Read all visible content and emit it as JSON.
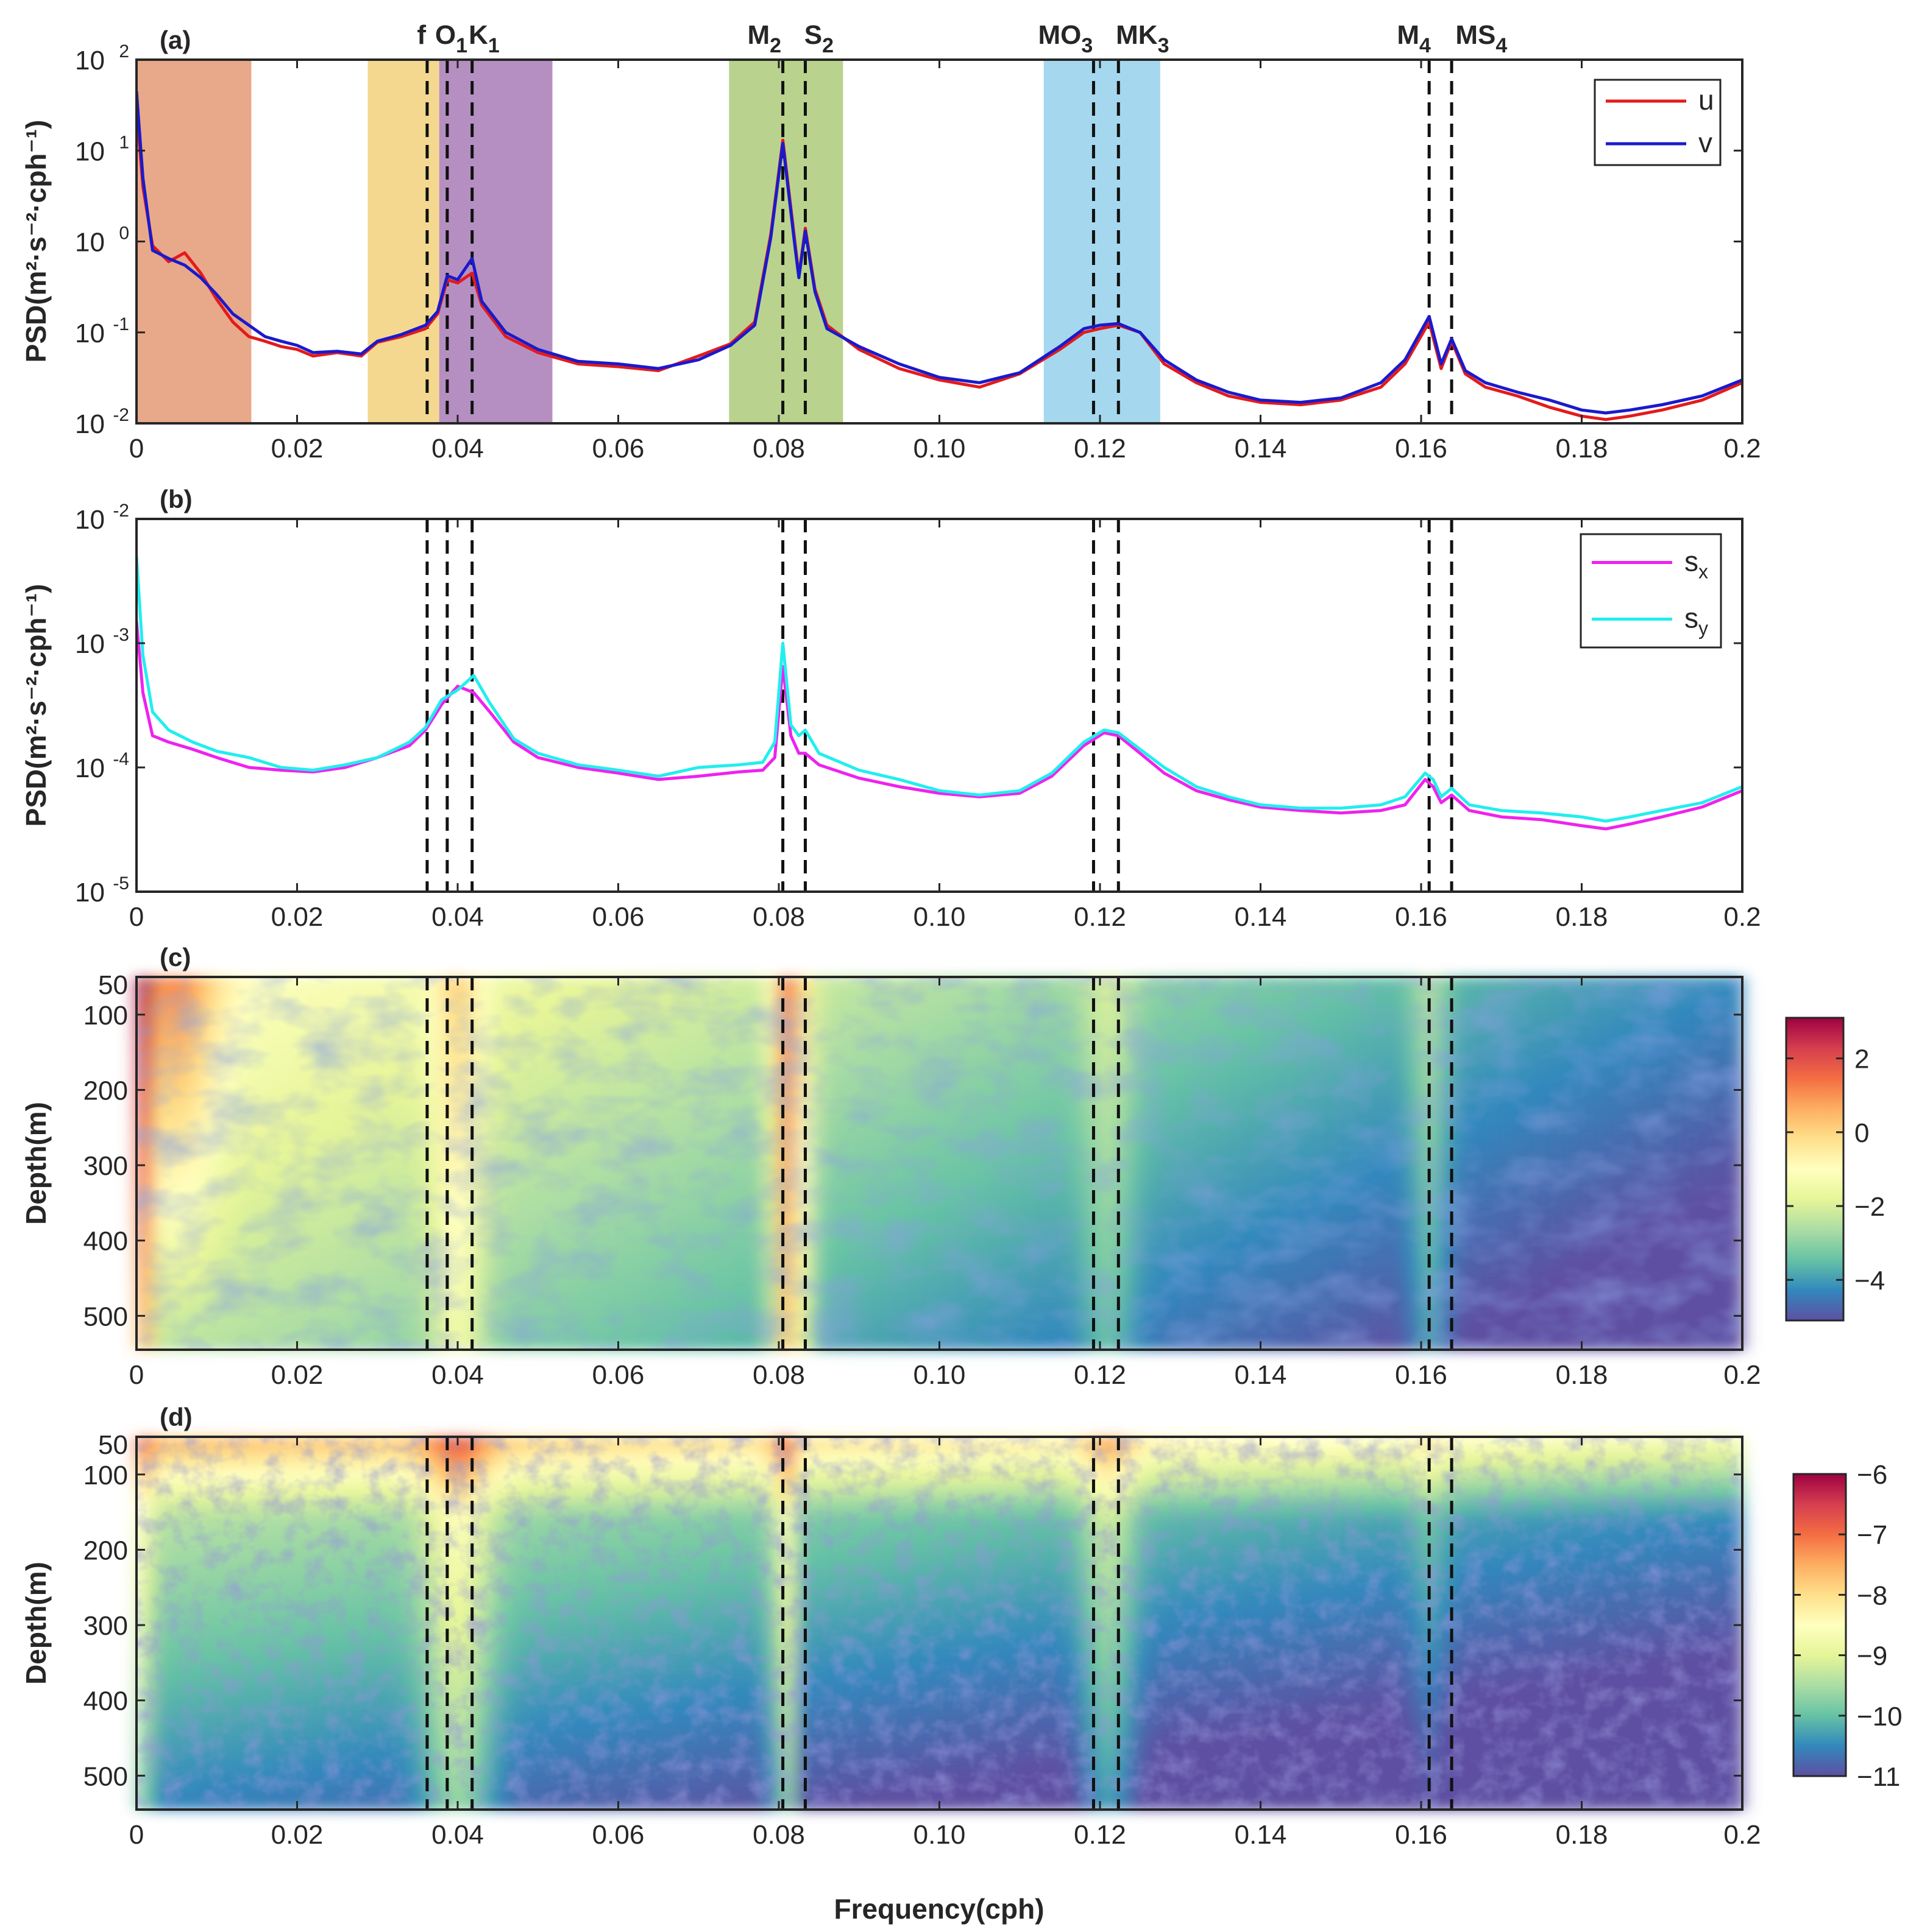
{
  "figure": {
    "xlabel": "Frequency(cph)",
    "xlim": [
      0,
      0.2
    ],
    "x_ticks": [
      0,
      0.02,
      0.04,
      0.06,
      0.08,
      0.1,
      0.12,
      0.14,
      0.16,
      0.18,
      0.2
    ],
    "x_tick_labels": [
      "0",
      "0.02",
      "0.04",
      "0.06",
      "0.08",
      "0.10",
      "0.12",
      "0.14",
      "0.16",
      "0.18",
      "0.2"
    ],
    "constituent_freqs": [
      0.0362,
      0.0387,
      0.0418,
      0.0805,
      0.0833,
      0.1192,
      0.1223,
      0.161,
      0.1638
    ]
  },
  "chart_data": [
    {
      "panel": "(a)",
      "type": "line",
      "yscale": "log",
      "ylabel": "PSD(m²·s⁻²·cph⁻¹)",
      "ylim": [
        0.01,
        100
      ],
      "y_ticks": [
        {
          "base": "10",
          "exp": "2",
          "value": 100
        },
        {
          "base": "10",
          "exp": "1",
          "value": 10
        },
        {
          "base": "10",
          "exp": "0",
          "value": 1
        },
        {
          "base": "10",
          "exp": "-1",
          "value": 0.1
        },
        {
          "base": "10",
          "exp": "-2",
          "value": 0.01
        }
      ],
      "constituent_labels": [
        {
          "text": "f",
          "sub": "",
          "x": 0.0355
        },
        {
          "text": "O",
          "sub": "1",
          "x": 0.0392
        },
        {
          "text": "K",
          "sub": "1",
          "x": 0.0433
        },
        {
          "text": "M",
          "sub": "2",
          "x": 0.0782
        },
        {
          "text": "S",
          "sub": "2",
          "x": 0.085
        },
        {
          "text": "MO",
          "sub": "3",
          "x": 0.1157
        },
        {
          "text": "MK",
          "sub": "3",
          "x": 0.1253
        },
        {
          "text": "M",
          "sub": "4",
          "x": 0.1591
        },
        {
          "text": "MS",
          "sub": "4",
          "x": 0.1675
        }
      ],
      "bands": [
        {
          "x0": 0.0,
          "x1": 0.0143,
          "color": "#e8a98a"
        },
        {
          "x0": 0.0288,
          "x1": 0.0377,
          "color": "#f5d890"
        },
        {
          "x0": 0.0377,
          "x1": 0.0518,
          "color": "#b68fc2"
        },
        {
          "x0": 0.0738,
          "x1": 0.088,
          "color": "#b9d38e"
        },
        {
          "x0": 0.113,
          "x1": 0.1275,
          "color": "#a5d8ee"
        }
      ],
      "series": [
        {
          "name": "u",
          "color": "#e41a1c",
          "x": [
            0,
            0.0008,
            0.002,
            0.004,
            0.006,
            0.008,
            0.01,
            0.012,
            0.014,
            0.016,
            0.018,
            0.02,
            0.022,
            0.025,
            0.028,
            0.03,
            0.033,
            0.036,
            0.0375,
            0.0387,
            0.04,
            0.0418,
            0.043,
            0.046,
            0.05,
            0.055,
            0.06,
            0.065,
            0.07,
            0.074,
            0.077,
            0.079,
            0.0805,
            0.082,
            0.0825,
            0.0833,
            0.0845,
            0.086,
            0.09,
            0.095,
            0.1,
            0.105,
            0.11,
            0.115,
            0.118,
            0.12,
            0.1223,
            0.125,
            0.128,
            0.132,
            0.136,
            0.14,
            0.145,
            0.15,
            0.155,
            0.158,
            0.161,
            0.1625,
            0.1638,
            0.1655,
            0.168,
            0.172,
            0.176,
            0.18,
            0.183,
            0.186,
            0.19,
            0.195,
            0.2
          ],
          "values": [
            30,
            4,
            0.9,
            0.6,
            0.75,
            0.45,
            0.23,
            0.13,
            0.09,
            0.08,
            0.07,
            0.065,
            0.055,
            0.06,
            0.055,
            0.078,
            0.09,
            0.11,
            0.16,
            0.38,
            0.35,
            0.45,
            0.2,
            0.09,
            0.06,
            0.045,
            0.042,
            0.038,
            0.055,
            0.075,
            0.13,
            1.2,
            13,
            1.0,
            0.42,
            1.4,
            0.3,
            0.12,
            0.065,
            0.04,
            0.03,
            0.025,
            0.035,
            0.065,
            0.1,
            0.11,
            0.12,
            0.1,
            0.045,
            0.028,
            0.02,
            0.017,
            0.016,
            0.018,
            0.025,
            0.045,
            0.13,
            0.04,
            0.08,
            0.035,
            0.025,
            0.02,
            0.015,
            0.012,
            0.011,
            0.012,
            0.014,
            0.018,
            0.028
          ]
        },
        {
          "name": "v",
          "color": "#1a1acc",
          "x": [
            0,
            0.0008,
            0.002,
            0.004,
            0.006,
            0.008,
            0.01,
            0.012,
            0.014,
            0.016,
            0.018,
            0.02,
            0.022,
            0.025,
            0.028,
            0.03,
            0.033,
            0.036,
            0.0375,
            0.0387,
            0.04,
            0.0418,
            0.043,
            0.046,
            0.05,
            0.055,
            0.06,
            0.065,
            0.07,
            0.074,
            0.077,
            0.079,
            0.0805,
            0.082,
            0.0825,
            0.0833,
            0.0845,
            0.086,
            0.09,
            0.095,
            0.1,
            0.105,
            0.11,
            0.115,
            0.118,
            0.12,
            0.1223,
            0.125,
            0.128,
            0.132,
            0.136,
            0.14,
            0.145,
            0.15,
            0.155,
            0.158,
            0.161,
            0.1625,
            0.1638,
            0.1655,
            0.168,
            0.172,
            0.176,
            0.18,
            0.183,
            0.186,
            0.19,
            0.195,
            0.2
          ],
          "values": [
            45,
            5,
            0.8,
            0.65,
            0.55,
            0.4,
            0.26,
            0.16,
            0.12,
            0.09,
            0.08,
            0.072,
            0.06,
            0.062,
            0.058,
            0.08,
            0.095,
            0.12,
            0.17,
            0.42,
            0.38,
            0.65,
            0.22,
            0.1,
            0.065,
            0.048,
            0.045,
            0.04,
            0.05,
            0.072,
            0.12,
            1.1,
            12,
            0.9,
            0.4,
            1.3,
            0.28,
            0.11,
            0.07,
            0.045,
            0.032,
            0.028,
            0.036,
            0.07,
            0.11,
            0.12,
            0.125,
            0.1,
            0.05,
            0.03,
            0.022,
            0.018,
            0.017,
            0.019,
            0.028,
            0.05,
            0.15,
            0.045,
            0.085,
            0.038,
            0.028,
            0.022,
            0.018,
            0.014,
            0.013,
            0.014,
            0.016,
            0.02,
            0.03
          ]
        }
      ],
      "legend": {
        "position": "top-right"
      }
    },
    {
      "panel": "(b)",
      "type": "line",
      "yscale": "log",
      "ylabel": "PSD(m²·s⁻²·cph⁻¹)",
      "ylim": [
        1e-05,
        0.01
      ],
      "y_ticks": [
        {
          "base": "10",
          "exp": "-2",
          "value": 0.01
        },
        {
          "base": "10",
          "exp": "-3",
          "value": 0.001
        },
        {
          "base": "10",
          "exp": "-4",
          "value": 0.0001
        },
        {
          "base": "10",
          "exp": "-5",
          "value": 1e-05
        }
      ],
      "series": [
        {
          "name": "s_x",
          "label": "s",
          "sub": "x",
          "color": "#ee22ee",
          "x": [
            0,
            0.0008,
            0.002,
            0.004,
            0.007,
            0.01,
            0.014,
            0.018,
            0.022,
            0.026,
            0.03,
            0.034,
            0.036,
            0.038,
            0.04,
            0.042,
            0.044,
            0.047,
            0.05,
            0.055,
            0.06,
            0.065,
            0.07,
            0.075,
            0.078,
            0.0795,
            0.0805,
            0.0815,
            0.0825,
            0.0833,
            0.085,
            0.09,
            0.095,
            0.1,
            0.105,
            0.11,
            0.114,
            0.118,
            0.1205,
            0.1223,
            0.125,
            0.128,
            0.132,
            0.136,
            0.14,
            0.145,
            0.15,
            0.155,
            0.158,
            0.1605,
            0.1615,
            0.1625,
            0.1638,
            0.166,
            0.17,
            0.175,
            0.18,
            0.183,
            0.186,
            0.19,
            0.195,
            0.2
          ],
          "values": [
            0.0015,
            0.0004,
            0.00018,
            0.00016,
            0.00014,
            0.00012,
            0.0001,
            9.5e-05,
            9.2e-05,
            0.0001,
            0.00012,
            0.00015,
            0.0002,
            0.00032,
            0.00045,
            0.0004,
            0.00028,
            0.00016,
            0.00012,
            0.0001,
            9e-05,
            8e-05,
            8.5e-05,
            9.2e-05,
            9.5e-05,
            0.00012,
            0.00065,
            0.00018,
            0.00013,
            0.00013,
            0.000105,
            8.2e-05,
            7e-05,
            6.2e-05,
            5.8e-05,
            6.2e-05,
            8.5e-05,
            0.00015,
            0.00019,
            0.00018,
            0.00013,
            9e-05,
            6.5e-05,
            5.5e-05,
            4.8e-05,
            4.5e-05,
            4.3e-05,
            4.5e-05,
            5e-05,
            8e-05,
            7e-05,
            5.2e-05,
            6e-05,
            4.5e-05,
            4e-05,
            3.8e-05,
            3.4e-05,
            3.2e-05,
            3.5e-05,
            4e-05,
            4.8e-05,
            6.5e-05
          ]
        },
        {
          "name": "s_y",
          "label": "s",
          "sub": "y",
          "color": "#22eeee",
          "x": [
            0,
            0.0008,
            0.002,
            0.004,
            0.007,
            0.01,
            0.014,
            0.018,
            0.022,
            0.026,
            0.03,
            0.034,
            0.036,
            0.038,
            0.04,
            0.042,
            0.044,
            0.047,
            0.05,
            0.055,
            0.06,
            0.065,
            0.07,
            0.075,
            0.078,
            0.0795,
            0.0805,
            0.0815,
            0.0825,
            0.0833,
            0.085,
            0.09,
            0.095,
            0.1,
            0.105,
            0.11,
            0.114,
            0.118,
            0.1205,
            0.1223,
            0.125,
            0.128,
            0.132,
            0.136,
            0.14,
            0.145,
            0.15,
            0.155,
            0.158,
            0.1605,
            0.1615,
            0.1625,
            0.1638,
            0.166,
            0.17,
            0.175,
            0.18,
            0.183,
            0.186,
            0.19,
            0.195,
            0.2
          ],
          "values": [
            0.005,
            0.0008,
            0.00028,
            0.0002,
            0.00016,
            0.000135,
            0.00012,
            0.0001,
            9.5e-05,
            0.000105,
            0.00012,
            0.00016,
            0.00021,
            0.00035,
            0.00042,
            0.00055,
            0.00033,
            0.00017,
            0.00013,
            0.000105,
            9.5e-05,
            8.5e-05,
            0.0001,
            0.000105,
            0.00011,
            0.00016,
            0.001,
            0.00022,
            0.00018,
            0.0002,
            0.00013,
            9.5e-05,
            8e-05,
            6.5e-05,
            6e-05,
            6.5e-05,
            9e-05,
            0.00016,
            0.0002,
            0.00019,
            0.00014,
            0.0001,
            7e-05,
            5.8e-05,
            5e-05,
            4.7e-05,
            4.7e-05,
            5e-05,
            5.8e-05,
            9e-05,
            8e-05,
            5.8e-05,
            6.8e-05,
            5e-05,
            4.5e-05,
            4.3e-05,
            4e-05,
            3.7e-05,
            4e-05,
            4.5e-05,
            5.2e-05,
            7e-05
          ]
        }
      ],
      "legend": {
        "position": "top-right"
      }
    },
    {
      "panel": "(c)",
      "type": "heatmap",
      "ylabel": "Depth(m)",
      "ylim": [
        50,
        545
      ],
      "y_ticks": [
        50,
        100,
        200,
        300,
        400,
        500
      ],
      "colorbar_ticks": [
        2,
        0,
        -2,
        -4
      ],
      "colorbar_range": [
        -5.1,
        3.1
      ],
      "description": "log10 spectral energy of velocity vs depth and frequency"
    },
    {
      "panel": "(d)",
      "type": "heatmap",
      "ylabel": "Depth(m)",
      "ylim": [
        50,
        545
      ],
      "y_ticks": [
        50,
        100,
        200,
        300,
        400,
        500
      ],
      "colorbar_ticks": [
        -6,
        -7,
        -8,
        -9,
        -10,
        -11
      ],
      "colorbar_range": [
        -11,
        -6
      ],
      "description": "log10 spectral energy of shear vs depth and frequency"
    }
  ]
}
